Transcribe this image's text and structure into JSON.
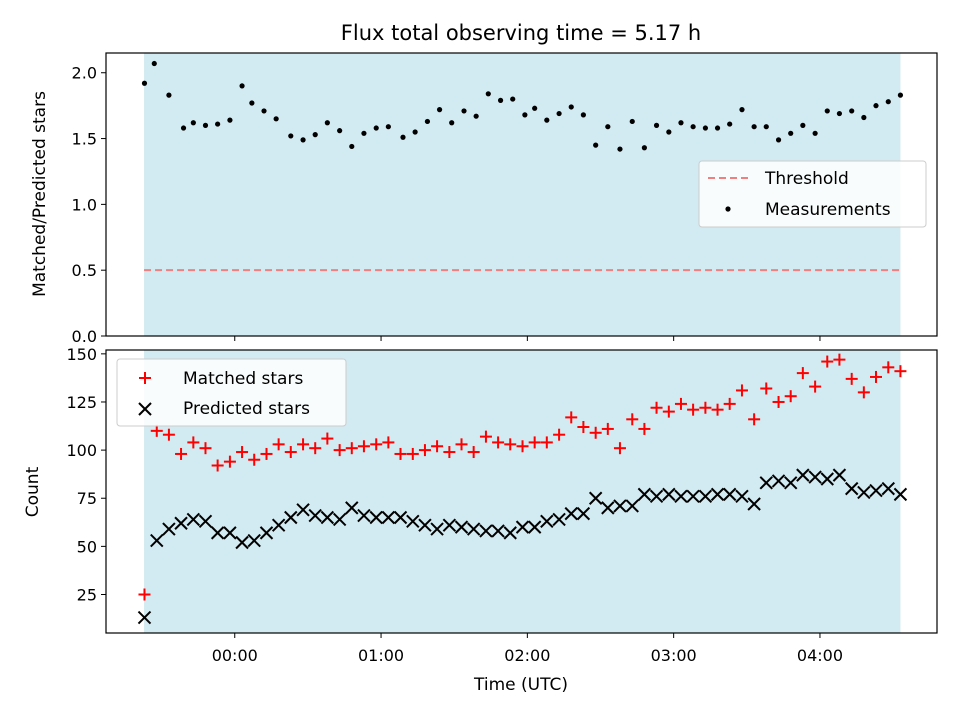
{
  "colors": {
    "background": "#ffffff",
    "shade": "#add8e6",
    "threshold": "#f08080",
    "matched": "#ff0000",
    "predicted": "#000000",
    "measurement": "#000000"
  },
  "chart_data": [
    {
      "type": "scatter",
      "title": "Flux total observing time = 5.17 h",
      "ylabel": "Matched/Predicted stars",
      "xlabel": "",
      "x_unit": "hours since 00:00 UTC",
      "xlim": [
        -0.88,
        4.8
      ],
      "ylim": [
        0,
        2.15
      ],
      "yticks": [
        0,
        0.5,
        1.0,
        1.5,
        2.0
      ],
      "ytick_labels": [
        "0.0",
        "0.5",
        "1.0",
        "1.5",
        "2.0"
      ],
      "xticks": [
        0,
        1,
        2,
        3,
        4
      ],
      "xtick_labels_visible": false,
      "shaded_range": [
        -0.62,
        4.55
      ],
      "threshold": {
        "name": "Threshold",
        "y": 0.5,
        "x_range": [
          -0.62,
          4.55
        ],
        "style": "dashed"
      },
      "legend": {
        "placement": "center-right",
        "entries": [
          "Threshold",
          "Measurements"
        ]
      },
      "series": [
        {
          "name": "Measurements",
          "marker": "dot",
          "x": [
            -0.617,
            -0.55,
            -0.45,
            -0.35,
            -0.283,
            -0.2,
            -0.117,
            -0.033,
            0.05,
            0.117,
            0.2,
            0.283,
            0.383,
            0.467,
            0.55,
            0.633,
            0.717,
            0.8,
            0.883,
            0.967,
            1.05,
            1.15,
            1.233,
            1.317,
            1.4,
            1.483,
            1.567,
            1.65,
            1.733,
            1.817,
            1.9,
            1.983,
            2.05,
            2.133,
            2.217,
            2.3,
            2.383,
            2.467,
            2.55,
            2.633,
            2.717,
            2.8,
            2.883,
            2.967,
            3.05,
            3.133,
            3.217,
            3.3,
            3.383,
            3.467,
            3.55,
            3.633,
            3.717,
            3.8,
            3.883,
            3.967,
            4.05,
            4.133,
            4.217,
            4.3,
            4.383,
            4.467,
            4.55
          ],
          "y": [
            1.92,
            2.07,
            1.83,
            1.58,
            1.62,
            1.6,
            1.61,
            1.64,
            1.9,
            1.77,
            1.71,
            1.65,
            1.52,
            1.49,
            1.53,
            1.62,
            1.56,
            1.44,
            1.54,
            1.58,
            1.59,
            1.51,
            1.55,
            1.63,
            1.72,
            1.62,
            1.71,
            1.67,
            1.84,
            1.79,
            1.8,
            1.68,
            1.73,
            1.64,
            1.69,
            1.74,
            1.68,
            1.45,
            1.59,
            1.42,
            1.63,
            1.43,
            1.6,
            1.55,
            1.62,
            1.59,
            1.58,
            1.58,
            1.61,
            1.72,
            1.59,
            1.59,
            1.49,
            1.54,
            1.6,
            1.54,
            1.71,
            1.69,
            1.71,
            1.66,
            1.75,
            1.78,
            1.83
          ]
        }
      ]
    },
    {
      "type": "scatter",
      "title": "",
      "ylabel": "Count",
      "xlabel": "Time (UTC)",
      "x_unit": "hours since 00:00 UTC",
      "xlim": [
        -0.88,
        4.8
      ],
      "ylim": [
        5,
        152
      ],
      "yticks": [
        25,
        50,
        75,
        100,
        125,
        150
      ],
      "ytick_labels": [
        "25",
        "50",
        "75",
        "100",
        "125",
        "150"
      ],
      "xticks": [
        0,
        1,
        2,
        3,
        4
      ],
      "xtick_labels": [
        "00:00",
        "01:00",
        "02:00",
        "03:00",
        "04:00"
      ],
      "shaded_range": [
        -0.62,
        4.55
      ],
      "legend": {
        "placement": "top-left",
        "entries": [
          "Matched stars",
          "Predicted stars"
        ]
      },
      "x": [
        -0.617,
        -0.533,
        -0.45,
        -0.367,
        -0.283,
        -0.2,
        -0.117,
        -0.033,
        0.05,
        0.133,
        0.217,
        0.3,
        0.383,
        0.467,
        0.55,
        0.633,
        0.717,
        0.8,
        0.883,
        0.967,
        1.05,
        1.133,
        1.217,
        1.3,
        1.383,
        1.467,
        1.55,
        1.633,
        1.717,
        1.8,
        1.883,
        1.967,
        2.05,
        2.133,
        2.217,
        2.3,
        2.383,
        2.467,
        2.55,
        2.633,
        2.717,
        2.8,
        2.883,
        2.967,
        3.05,
        3.133,
        3.217,
        3.3,
        3.383,
        3.467,
        3.55,
        3.633,
        3.717,
        3.8,
        3.883,
        3.967,
        4.05,
        4.133,
        4.217,
        4.3,
        4.383,
        4.467,
        4.55
      ],
      "series": [
        {
          "name": "Matched stars",
          "marker": "plus",
          "values": [
            25,
            110,
            108,
            98,
            104,
            101,
            92,
            94,
            99,
            95,
            98,
            103,
            99,
            103,
            101,
            106,
            100,
            101,
            102,
            103,
            104,
            98,
            98,
            100,
            102,
            99,
            103,
            99,
            107,
            104,
            103,
            102,
            104,
            104,
            108,
            117,
            112,
            109,
            111,
            101,
            116,
            111,
            122,
            120,
            124,
            121,
            122,
            121,
            124,
            131,
            116,
            132,
            125,
            128,
            140,
            133,
            146,
            147,
            137,
            130,
            138,
            143,
            141
          ]
        },
        {
          "name": "Predicted stars",
          "marker": "x",
          "values": [
            13,
            53,
            59,
            62,
            64,
            63,
            57,
            57,
            52,
            53,
            57,
            61,
            65,
            69,
            66,
            65,
            64,
            70,
            66,
            65,
            65,
            65,
            63,
            61,
            59,
            61,
            60,
            59,
            58,
            58,
            57,
            60,
            60,
            63,
            64,
            67,
            67,
            75,
            70,
            71,
            71,
            77,
            76,
            77,
            76,
            76,
            76,
            77,
            77,
            76,
            72,
            83,
            84,
            83,
            87,
            86,
            85,
            87,
            80,
            78,
            79,
            80,
            77
          ]
        }
      ]
    }
  ]
}
